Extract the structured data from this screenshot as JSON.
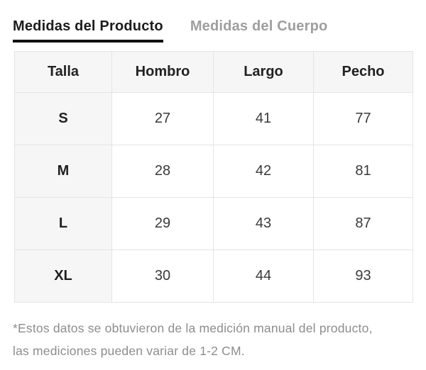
{
  "tabs": {
    "product_tab_label": "Medidas del Producto",
    "body_tab_label": "Medidas del Cuerpo",
    "active_tab": "Medidas del Producto"
  },
  "table": {
    "headers": [
      "Talla",
      "Hombro",
      "Largo",
      "Pecho"
    ],
    "rows": [
      {
        "size": "S",
        "values": [
          "27",
          "41",
          "77"
        ]
      },
      {
        "size": "M",
        "values": [
          "28",
          "42",
          "81"
        ]
      },
      {
        "size": "L",
        "values": [
          "29",
          "43",
          "87"
        ]
      },
      {
        "size": "XL",
        "values": [
          "30",
          "44",
          "93"
        ]
      }
    ]
  },
  "footnote": {
    "line1": "*Estos datos se obtuvieron de la medición manual del producto,",
    "line2": "las mediciones pueden variar de 1-2 CM."
  },
  "colors": {
    "active_tab_text": "#1c1c1c",
    "active_tab_underline": "#111111",
    "inactive_tab_text": "#9e9e9e",
    "cell_background": "#f6f6f6",
    "table_border": "#e4e4e4",
    "footnote_text": "#8d8d8d"
  }
}
